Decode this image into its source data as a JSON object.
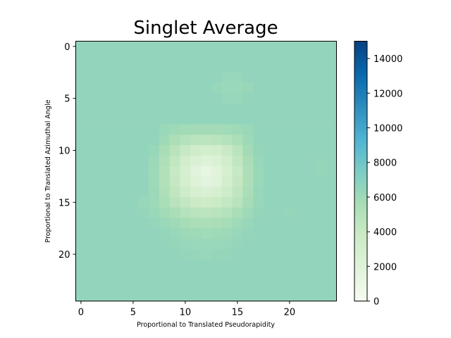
{
  "chart_data": {
    "type": "heatmap",
    "title": "Singlet Average",
    "xlabel": "Proportional to Translated Pseudorapidity",
    "ylabel": "Proportional to Translated Azimuthal Angle",
    "grid": false,
    "x_ticks": [
      0,
      5,
      10,
      15,
      20
    ],
    "y_ticks": [
      0,
      5,
      10,
      15,
      20
    ],
    "x_tick_labels": [
      "0",
      "5",
      "10",
      "15",
      "20"
    ],
    "y_tick_labels": [
      "0",
      "5",
      "10",
      "15",
      "20"
    ],
    "xlim": [
      -0.5,
      24.5
    ],
    "ylim": [
      24.5,
      -0.5
    ],
    "grid_size": [
      25,
      25
    ],
    "colorbar": {
      "colormap": "GnBu",
      "range": [
        0,
        15000
      ],
      "ticks": [
        0,
        2000,
        4000,
        6000,
        8000,
        10000,
        12000,
        14000
      ],
      "tick_labels": [
        "0",
        "2000",
        "4000",
        "6000",
        "8000",
        "10000",
        "12000",
        "14000"
      ]
    },
    "values": [
      [
        6500,
        6500,
        6500,
        6500,
        6500,
        6500,
        6500,
        6500,
        6500,
        6500,
        6500,
        6500,
        6500,
        6500,
        6500,
        6500,
        6500,
        6500,
        6500,
        6500,
        6500,
        6500,
        6500,
        6500,
        6500
      ],
      [
        6500,
        6500,
        6500,
        6500,
        6500,
        6500,
        6500,
        6500,
        6500,
        6500,
        6500,
        6500,
        6500,
        6500,
        6500,
        6500,
        6500,
        6500,
        6500,
        6500,
        6500,
        6500,
        6500,
        6500,
        6500
      ],
      [
        6500,
        6500,
        6500,
        6500,
        6500,
        6500,
        6500,
        6500,
        6500,
        6500,
        6500,
        6500,
        6500,
        6500,
        6500,
        6500,
        6500,
        6500,
        6500,
        6500,
        6500,
        6500,
        6500,
        6500,
        6500
      ],
      [
        6500,
        6500,
        6500,
        6500,
        6500,
        6500,
        6500,
        6500,
        6500,
        6500,
        6500,
        6500,
        6500,
        6500,
        6300,
        6300,
        6500,
        6500,
        6500,
        6500,
        6500,
        6500,
        6500,
        6500,
        6500
      ],
      [
        6500,
        6500,
        6500,
        6500,
        6500,
        6500,
        6500,
        6500,
        6500,
        6500,
        6500,
        6500,
        6500,
        6300,
        6200,
        6200,
        6300,
        6500,
        6500,
        6500,
        6500,
        6500,
        6500,
        6500,
        6500
      ],
      [
        6500,
        6500,
        6500,
        6500,
        6500,
        6500,
        6500,
        6500,
        6500,
        6500,
        6500,
        6500,
        6500,
        6500,
        6300,
        6300,
        6500,
        6500,
        6500,
        6500,
        6500,
        6500,
        6500,
        6500,
        6500
      ],
      [
        6500,
        6500,
        6500,
        6500,
        6500,
        6500,
        6500,
        6500,
        6500,
        6500,
        6500,
        6500,
        6500,
        6500,
        6500,
        6500,
        6500,
        6500,
        6500,
        6500,
        6500,
        6500,
        6500,
        6500,
        6500
      ],
      [
        6500,
        6500,
        6500,
        6500,
        6500,
        6500,
        6500,
        6500,
        6500,
        6500,
        6500,
        6500,
        6500,
        6500,
        6500,
        6500,
        6500,
        6500,
        6500,
        6500,
        6500,
        6500,
        6500,
        6500,
        6500
      ],
      [
        6500,
        6500,
        6500,
        6500,
        6500,
        6500,
        6500,
        6500,
        6200,
        6000,
        5900,
        5800,
        5800,
        5800,
        5900,
        6000,
        6200,
        6500,
        6500,
        6500,
        6500,
        6500,
        6500,
        6500,
        6500
      ],
      [
        6500,
        6500,
        6500,
        6500,
        6500,
        6500,
        6500,
        6500,
        6000,
        5400,
        5000,
        4700,
        4600,
        4700,
        5000,
        5400,
        6000,
        6500,
        6500,
        6500,
        6500,
        6500,
        6500,
        6500,
        6500
      ],
      [
        6500,
        6500,
        6500,
        6500,
        6500,
        6500,
        6500,
        6300,
        5600,
        4800,
        4000,
        3400,
        3100,
        3300,
        3900,
        4700,
        5800,
        6400,
        6500,
        6500,
        6500,
        6500,
        6500,
        6500,
        6500
      ],
      [
        6500,
        6500,
        6500,
        6500,
        6500,
        6500,
        6500,
        6100,
        5300,
        4300,
        3300,
        2500,
        2100,
        2400,
        3300,
        4300,
        5500,
        6300,
        6500,
        6500,
        6500,
        6500,
        6500,
        6400,
        6500
      ],
      [
        6500,
        6500,
        6500,
        6500,
        6500,
        6500,
        6500,
        6000,
        5100,
        4000,
        2800,
        1800,
        1300,
        1800,
        2900,
        4000,
        5300,
        6200,
        6500,
        6500,
        6500,
        6500,
        6500,
        6400,
        6500
      ],
      [
        6500,
        6500,
        6500,
        6500,
        6500,
        6500,
        6500,
        6000,
        5100,
        4100,
        3000,
        2100,
        1600,
        2000,
        3100,
        4100,
        5300,
        6200,
        6500,
        6500,
        6500,
        6500,
        6500,
        6500,
        6500
      ],
      [
        6500,
        6500,
        6500,
        6500,
        6500,
        6500,
        6500,
        6100,
        5300,
        4400,
        3500,
        2800,
        2500,
        2800,
        3500,
        4400,
        5500,
        6300,
        6500,
        6500,
        6500,
        6500,
        6500,
        6500,
        6500
      ],
      [
        6500,
        6500,
        6500,
        6500,
        6500,
        6500,
        6300,
        6100,
        5500,
        4800,
        4200,
        3800,
        3600,
        3800,
        4200,
        4800,
        5700,
        6300,
        6500,
        6500,
        6500,
        6500,
        6500,
        6500,
        6500
      ],
      [
        6500,
        6500,
        6500,
        6500,
        6500,
        6500,
        6400,
        6200,
        5900,
        5500,
        5000,
        4700,
        4600,
        4700,
        5000,
        5500,
        6000,
        6400,
        6500,
        6500,
        6400,
        6500,
        6500,
        6500,
        6500
      ],
      [
        6500,
        6500,
        6500,
        6500,
        6500,
        6500,
        6500,
        6400,
        6200,
        6000,
        5700,
        5500,
        5400,
        5500,
        5700,
        6000,
        6300,
        6500,
        6500,
        6500,
        6500,
        6500,
        6500,
        6500,
        6500
      ],
      [
        6500,
        6500,
        6500,
        6500,
        6500,
        6500,
        6500,
        6500,
        6400,
        6300,
        6100,
        6000,
        5900,
        6000,
        6100,
        6300,
        6400,
        6500,
        6500,
        6500,
        6500,
        6500,
        6500,
        6500,
        6500
      ],
      [
        6500,
        6500,
        6500,
        6500,
        6500,
        6500,
        6500,
        6500,
        6500,
        6400,
        6300,
        6200,
        6200,
        6200,
        6300,
        6400,
        6500,
        6500,
        6500,
        6500,
        6500,
        6500,
        6500,
        6500,
        6500
      ],
      [
        6500,
        6500,
        6500,
        6500,
        6500,
        6500,
        6500,
        6500,
        6500,
        6500,
        6400,
        6400,
        6300,
        6400,
        6400,
        6500,
        6500,
        6500,
        6500,
        6500,
        6500,
        6500,
        6500,
        6500,
        6500
      ],
      [
        6500,
        6500,
        6500,
        6500,
        6500,
        6500,
        6500,
        6500,
        6500,
        6500,
        6500,
        6500,
        6500,
        6500,
        6500,
        6500,
        6500,
        6500,
        6500,
        6500,
        6500,
        6500,
        6500,
        6500,
        6500
      ],
      [
        6500,
        6500,
        6500,
        6500,
        6500,
        6500,
        6500,
        6500,
        6500,
        6500,
        6500,
        6500,
        6500,
        6500,
        6500,
        6500,
        6500,
        6500,
        6500,
        6500,
        6500,
        6500,
        6500,
        6500,
        6500
      ],
      [
        6500,
        6500,
        6500,
        6500,
        6500,
        6500,
        6500,
        6500,
        6500,
        6500,
        6500,
        6500,
        6500,
        6500,
        6500,
        6500,
        6500,
        6500,
        6500,
        6500,
        6500,
        6500,
        6500,
        6500,
        6500
      ],
      [
        6500,
        6500,
        6500,
        6500,
        6500,
        6500,
        6500,
        6500,
        6500,
        6500,
        6500,
        6500,
        6500,
        6500,
        6500,
        6500,
        6500,
        6500,
        6500,
        6500,
        6500,
        6500,
        6500,
        6500,
        6500
      ]
    ]
  }
}
